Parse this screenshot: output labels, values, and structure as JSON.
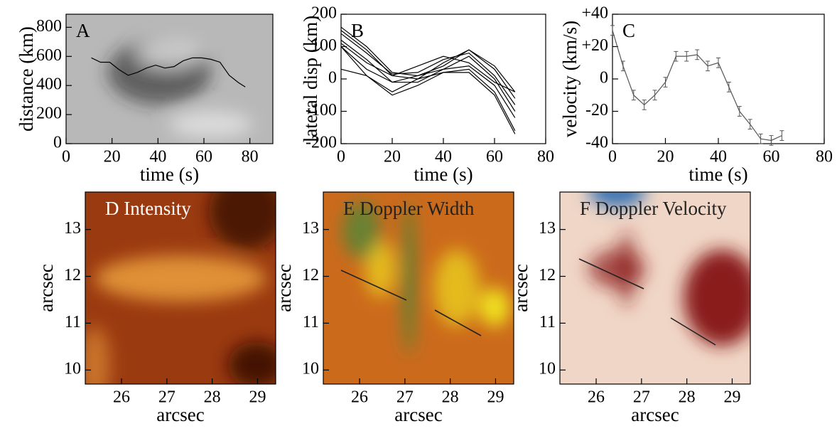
{
  "chart_data": [
    {
      "type": "line",
      "title": "A",
      "xlabel": "time (s)",
      "ylabel": "distance (km)",
      "xlim": [
        0,
        90
      ],
      "ylim": [
        0,
        890
      ],
      "xticks": [
        0,
        20,
        40,
        60,
        80
      ],
      "yticks": [
        0,
        200,
        400,
        600,
        800
      ],
      "title_color": "#000000",
      "colors": [
        "#b8b8b8",
        "#262626",
        "#f4f4f4"
      ],
      "series": [
        {
          "color": "#000000",
          "x": [
            11,
            15,
            19,
            23,
            27,
            31,
            35,
            39,
            43,
            47,
            51,
            55,
            59,
            63,
            67,
            71,
            75,
            78
          ],
          "values": [
            590,
            560,
            560,
            510,
            470,
            490,
            520,
            540,
            520,
            530,
            570,
            590,
            590,
            580,
            560,
            470,
            420,
            390
          ]
        }
      ]
    },
    {
      "type": "line",
      "title": "B",
      "xlabel": "time (s)",
      "ylabel": "lateral disp (km)",
      "xlim": [
        0,
        80
      ],
      "ylim": [
        -200,
        200
      ],
      "xticks": [
        0,
        20,
        40,
        60,
        80
      ],
      "yticks": [
        -200,
        -100,
        0,
        100,
        200
      ],
      "title_color": "#000000",
      "series": [
        {
          "color": "#000000",
          "x": [
            0,
            10,
            20,
            30,
            40,
            50,
            60,
            68
          ],
          "values": [
            160,
            100,
            20,
            10,
            40,
            90,
            40,
            -40
          ]
        },
        {
          "color": "#000000",
          "x": [
            0,
            10,
            20,
            30,
            40,
            50,
            60,
            68
          ],
          "values": [
            150,
            90,
            10,
            0,
            50,
            90,
            30,
            -60
          ]
        },
        {
          "color": "#000000",
          "x": [
            0,
            10,
            20,
            30,
            40,
            50,
            60,
            68
          ],
          "values": [
            140,
            80,
            15,
            20,
            60,
            80,
            10,
            -80
          ]
        },
        {
          "color": "#000000",
          "x": [
            0,
            10,
            20,
            30,
            40,
            50,
            60,
            68
          ],
          "values": [
            120,
            60,
            -10,
            -10,
            30,
            70,
            0,
            -100
          ]
        },
        {
          "color": "#000000",
          "x": [
            0,
            10,
            20,
            30,
            40,
            50,
            60,
            68
          ],
          "values": [
            110,
            50,
            10,
            40,
            70,
            50,
            -10,
            -40
          ]
        },
        {
          "color": "#000000",
          "x": [
            0,
            10,
            20,
            30,
            40,
            50,
            60,
            68
          ],
          "values": [
            100,
            30,
            -10,
            10,
            30,
            40,
            -20,
            -120
          ]
        },
        {
          "color": "#000000",
          "x": [
            0,
            10,
            20,
            30,
            40,
            50,
            60,
            68
          ],
          "values": [
            100,
            10,
            -40,
            0,
            20,
            30,
            -40,
            -160
          ]
        },
        {
          "color": "#000000",
          "x": [
            0,
            10,
            20,
            30,
            40,
            50,
            60,
            68
          ],
          "values": [
            30,
            10,
            -50,
            -20,
            20,
            20,
            -50,
            -170
          ]
        }
      ]
    },
    {
      "type": "errorline",
      "title": "C",
      "xlabel": "time (s)",
      "ylabel": "velocity (km/s)",
      "xlim": [
        0,
        80
      ],
      "ylim": [
        -40,
        40
      ],
      "xticks": [
        0,
        20,
        40,
        60,
        80
      ],
      "yticks": [
        -40,
        -20,
        0,
        {
          "value": 20,
          "label": "+20"
        },
        {
          "value": 40,
          "label": "+40"
        }
      ],
      "title_color": "#000000",
      "series": [
        {
          "color": "#555555",
          "x": [
            0,
            4,
            8,
            12,
            16,
            20,
            24,
            28,
            32,
            36,
            40,
            44,
            48,
            52,
            56,
            60,
            64
          ],
          "values": [
            30,
            8,
            -10,
            -16,
            -10,
            -2,
            14,
            14,
            15,
            8,
            10,
            -5,
            -20,
            -28,
            -37,
            -38,
            -35
          ],
          "errors": [
            3,
            3,
            3,
            3,
            3,
            3,
            3,
            3,
            3,
            3,
            3,
            3,
            3,
            3,
            3,
            3,
            3
          ]
        }
      ]
    },
    {
      "type": "image",
      "title": "D Intensity",
      "xlabel": "arcsec",
      "ylabel": "arcsec",
      "xlim": [
        25.2,
        29.4
      ],
      "ylim": [
        9.7,
        13.8
      ],
      "xticks": [
        26,
        27,
        28,
        29
      ],
      "yticks": [
        10,
        11,
        12,
        13
      ],
      "title_color": "#ffffff",
      "colors": [
        "#9a3a10",
        "#e89a3a",
        "#3a1004"
      ]
    },
    {
      "type": "image",
      "title": "E Doppler Width",
      "xlabel": "arcsec",
      "ylabel": "arcsec",
      "xlim": [
        25.2,
        29.4
      ],
      "ylim": [
        9.7,
        13.8
      ],
      "xticks": [
        26,
        27,
        28,
        29
      ],
      "yticks": [
        10,
        11,
        12,
        13
      ],
      "title_color": "#222222",
      "colors": [
        "#cc6a1c",
        "#f4f020",
        "#3f8a3a"
      ]
    },
    {
      "type": "image",
      "title": "F Doppler Velocity",
      "xlabel": "arcsec",
      "ylabel": "arcsec",
      "xlim": [
        25.2,
        29.4
      ],
      "ylim": [
        9.7,
        13.8
      ],
      "xticks": [
        26,
        27,
        28,
        29
      ],
      "yticks": [
        10,
        11,
        12,
        13
      ],
      "title_color": "#222222",
      "colors": [
        "#f0d6c6",
        "#8a1a1a",
        "#2a6ab0"
      ]
    }
  ]
}
